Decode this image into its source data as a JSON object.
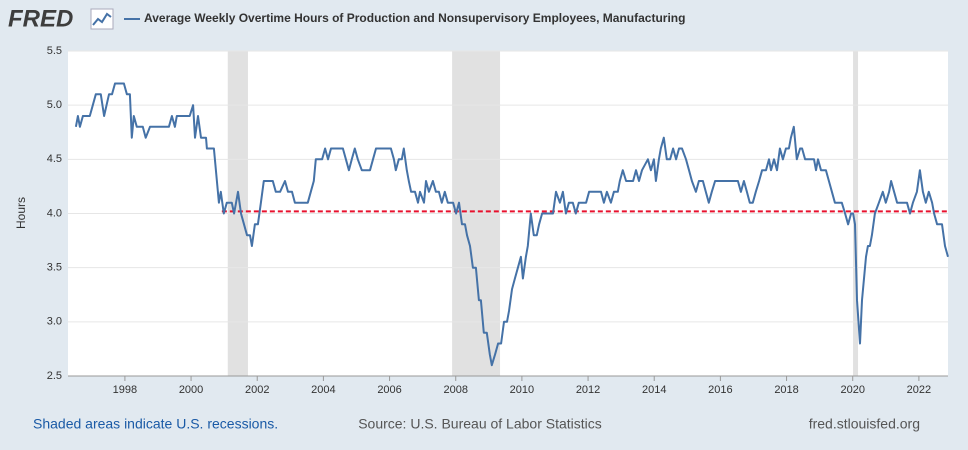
{
  "chart_data": {
    "type": "line",
    "logo": "FRED",
    "title": "Average Weekly Overtime Hours of Production and Nonsupervisory Employees, Manufacturing",
    "y_label": "Hours",
    "recession_note": "Shaded areas indicate U.S. recessions.",
    "source": "Source: U.S. Bureau of Labor Statistics",
    "site": "fred.stlouisfed.org",
    "xlim": [
      1996.28,
      2022.88
    ],
    "xticks": [
      1998,
      2000,
      2002,
      2004,
      2006,
      2008,
      2010,
      2012,
      2014,
      2016,
      2018,
      2020,
      2022
    ],
    "ylim": [
      2.5,
      5.5
    ],
    "yticks": [
      {
        "value": 2.5,
        "label": "2.5"
      },
      {
        "value": 3,
        "label": "3.0"
      },
      {
        "value": 3.5,
        "label": "3.5"
      },
      {
        "value": 4,
        "label": "4.0"
      },
      {
        "value": 4.5,
        "label": "4.5"
      },
      {
        "value": 5,
        "label": "5.0"
      },
      {
        "value": 5.5,
        "label": "5.5"
      }
    ],
    "grid": true,
    "recessions": [
      [
        2001.11,
        2001.72
      ],
      [
        2007.89,
        2009.34
      ],
      [
        2020.01,
        2020.16
      ]
    ],
    "recession_color": "#e1e1e1",
    "reference_line": {
      "value": 4.02,
      "x_start": 2000.93,
      "color": "#e8112d"
    },
    "x": [
      1996.52,
      1996.58,
      1996.64,
      1996.73,
      1996.94,
      1997.03,
      1997.12,
      1997.27,
      1997.37,
      1997.52,
      1997.61,
      1997.7,
      1997.97,
      1998.06,
      1998.15,
      1998.21,
      1998.27,
      1998.36,
      1998.54,
      1998.63,
      1998.76,
      1999.33,
      1999.42,
      1999.51,
      1999.57,
      1999.96,
      2000.06,
      2000.12,
      2000.21,
      2000.3,
      2000.45,
      2000.48,
      2000.69,
      2000.75,
      2000.84,
      2000.9,
      2000.99,
      2001.08,
      2001.23,
      2001.3,
      2001.42,
      2001.51,
      2001.6,
      2001.69,
      2001.78,
      2001.84,
      2001.93,
      2002.02,
      2002.11,
      2002.2,
      2002.47,
      2002.56,
      2002.69,
      2002.84,
      2002.93,
      2003.05,
      2003.14,
      2003.53,
      2003.62,
      2003.71,
      2003.77,
      2003.96,
      2004.05,
      2004.14,
      2004.23,
      2004.59,
      2004.68,
      2004.77,
      2004.86,
      2004.95,
      2005.04,
      2005.16,
      2005.41,
      2005.5,
      2005.59,
      2006.04,
      2006.13,
      2006.19,
      2006.28,
      2006.37,
      2006.43,
      2006.52,
      2006.58,
      2006.65,
      2006.77,
      2006.86,
      2006.92,
      2007.04,
      2007.1,
      2007.19,
      2007.31,
      2007.4,
      2007.49,
      2007.58,
      2007.67,
      2007.76,
      2007.92,
      2008.01,
      2008.1,
      2008.19,
      2008.28,
      2008.34,
      2008.43,
      2008.52,
      2008.61,
      2008.7,
      2008.76,
      2008.85,
      2008.94,
      2009.03,
      2009.09,
      2009.19,
      2009.28,
      2009.37,
      2009.46,
      2009.55,
      2009.61,
      2009.7,
      2009.79,
      2009.88,
      2009.97,
      2010.03,
      2010.12,
      2010.18,
      2010.27,
      2010.36,
      2010.45,
      2010.52,
      2010.61,
      2010.94,
      2011.03,
      2011.15,
      2011.24,
      2011.33,
      2011.42,
      2011.54,
      2011.63,
      2011.72,
      2011.94,
      2012.03,
      2012.39,
      2012.48,
      2012.57,
      2012.69,
      2012.78,
      2012.9,
      2012.96,
      2013.05,
      2013.15,
      2013.36,
      2013.45,
      2013.54,
      2013.63,
      2013.81,
      2013.9,
      2013.99,
      2014.05,
      2014.14,
      2014.2,
      2014.29,
      2014.38,
      2014.48,
      2014.57,
      2014.66,
      2014.75,
      2014.84,
      2014.96,
      2015.05,
      2015.14,
      2015.26,
      2015.35,
      2015.47,
      2015.56,
      2015.65,
      2015.74,
      2015.84,
      2016.53,
      2016.62,
      2016.71,
      2016.8,
      2016.89,
      2016.98,
      2017.07,
      2017.17,
      2017.26,
      2017.38,
      2017.47,
      2017.53,
      2017.62,
      2017.71,
      2017.8,
      2017.89,
      2017.98,
      2018.07,
      2018.13,
      2018.22,
      2018.31,
      2018.41,
      2018.47,
      2018.56,
      2018.83,
      2018.89,
      2018.95,
      2019.04,
      2019.19,
      2019.28,
      2019.37,
      2019.46,
      2019.67,
      2019.77,
      2019.86,
      2019.95,
      2020.01,
      2020.07,
      2020.13,
      2020.22,
      2020.28,
      2020.34,
      2020.4,
      2020.46,
      2020.52,
      2020.58,
      2020.67,
      2020.79,
      2020.91,
      2021.0,
      2021.1,
      2021.16,
      2021.25,
      2021.34,
      2021.64,
      2021.73,
      2021.82,
      2021.94,
      2022.03,
      2022.12,
      2022.21,
      2022.3,
      2022.4,
      2022.46,
      2022.55,
      2022.7,
      2022.79,
      2022.88
    ],
    "series": [
      {
        "color": "#4572a7",
        "values": [
          4.8,
          4.9,
          4.8,
          4.9,
          4.9,
          5.0,
          5.1,
          5.1,
          4.9,
          5.1,
          5.1,
          5.2,
          5.2,
          5.1,
          5.1,
          4.7,
          4.9,
          4.8,
          4.8,
          4.7,
          4.8,
          4.8,
          4.9,
          4.8,
          4.9,
          4.9,
          5.0,
          4.7,
          4.9,
          4.7,
          4.7,
          4.6,
          4.6,
          4.4,
          4.1,
          4.2,
          4.0,
          4.1,
          4.1,
          4.0,
          4.2,
          4.0,
          3.9,
          3.8,
          3.8,
          3.7,
          3.9,
          3.9,
          4.1,
          4.3,
          4.3,
          4.2,
          4.2,
          4.3,
          4.2,
          4.2,
          4.1,
          4.1,
          4.2,
          4.3,
          4.5,
          4.5,
          4.6,
          4.5,
          4.6,
          4.6,
          4.5,
          4.4,
          4.5,
          4.6,
          4.5,
          4.4,
          4.4,
          4.5,
          4.6,
          4.6,
          4.5,
          4.4,
          4.5,
          4.5,
          4.6,
          4.4,
          4.3,
          4.2,
          4.2,
          4.1,
          4.2,
          4.1,
          4.3,
          4.2,
          4.3,
          4.2,
          4.2,
          4.1,
          4.2,
          4.1,
          4.1,
          4.0,
          4.1,
          3.9,
          3.9,
          3.8,
          3.7,
          3.5,
          3.5,
          3.2,
          3.2,
          2.9,
          2.9,
          2.7,
          2.6,
          2.7,
          2.8,
          2.8,
          3.0,
          3.0,
          3.1,
          3.3,
          3.4,
          3.5,
          3.6,
          3.4,
          3.6,
          3.7,
          4.0,
          3.8,
          3.8,
          3.9,
          4.0,
          4.0,
          4.2,
          4.1,
          4.2,
          4.0,
          4.1,
          4.1,
          4.0,
          4.1,
          4.1,
          4.2,
          4.2,
          4.1,
          4.2,
          4.1,
          4.2,
          4.2,
          4.3,
          4.4,
          4.3,
          4.3,
          4.4,
          4.3,
          4.4,
          4.5,
          4.4,
          4.5,
          4.3,
          4.5,
          4.6,
          4.7,
          4.5,
          4.5,
          4.6,
          4.5,
          4.6,
          4.6,
          4.5,
          4.4,
          4.3,
          4.2,
          4.3,
          4.3,
          4.2,
          4.1,
          4.2,
          4.3,
          4.3,
          4.2,
          4.3,
          4.2,
          4.1,
          4.1,
          4.2,
          4.3,
          4.4,
          4.4,
          4.5,
          4.4,
          4.5,
          4.4,
          4.6,
          4.5,
          4.6,
          4.6,
          4.7,
          4.8,
          4.5,
          4.6,
          4.6,
          4.5,
          4.5,
          4.4,
          4.5,
          4.4,
          4.4,
          4.3,
          4.2,
          4.1,
          4.1,
          4.0,
          3.9,
          4.0,
          4.0,
          3.9,
          3.2,
          2.8,
          3.2,
          3.4,
          3.6,
          3.7,
          3.7,
          3.8,
          4.0,
          4.1,
          4.2,
          4.1,
          4.2,
          4.3,
          4.2,
          4.1,
          4.1,
          4.0,
          4.1,
          4.2,
          4.4,
          4.2,
          4.1,
          4.2,
          4.1,
          4.0,
          3.9,
          3.9,
          3.7,
          3.6
        ]
      }
    ]
  }
}
